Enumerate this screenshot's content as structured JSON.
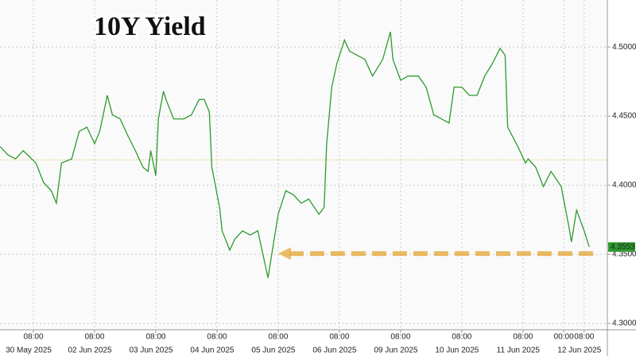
{
  "chart_data": {
    "type": "line",
    "title": "10Y Yield",
    "color": "#2e9a2e",
    "x": [
      -5,
      -2,
      1,
      4,
      9,
      12,
      15,
      17,
      19,
      23,
      26,
      29,
      32,
      34,
      37,
      39,
      42,
      45,
      48,
      51,
      53,
      54,
      56,
      57,
      59,
      60,
      63,
      67,
      70,
      73,
      75,
      77,
      78,
      81,
      82,
      85,
      87,
      90,
      93,
      96,
      98,
      100,
      102,
      104,
      107,
      110,
      113,
      116,
      120,
      122,
      123,
      125,
      127,
      130,
      132,
      135,
      138,
      141,
      145,
      148,
      149,
      152,
      155,
      159,
      162,
      165,
      168,
      171,
      173,
      176,
      179,
      182,
      185,
      188,
      191,
      193,
      194,
      198,
      201,
      202,
      205,
      208,
      211,
      215,
      218,
      219,
      221,
      224,
      226
    ],
    "values": [
      4.428,
      4.422,
      4.419,
      4.425,
      4.416,
      4.402,
      4.396,
      4.387,
      4.416,
      4.419,
      4.439,
      4.442,
      4.43,
      4.439,
      4.465,
      4.451,
      4.448,
      4.436,
      4.425,
      4.413,
      4.41,
      4.425,
      4.407,
      4.448,
      4.468,
      4.462,
      4.448,
      4.448,
      4.451,
      4.462,
      4.462,
      4.453,
      4.413,
      4.384,
      4.367,
      4.353,
      4.361,
      4.367,
      4.364,
      4.367,
      4.35,
      4.333,
      4.356,
      4.379,
      4.396,
      4.393,
      4.387,
      4.39,
      4.379,
      4.384,
      4.43,
      4.471,
      4.488,
      4.505,
      4.497,
      4.494,
      4.491,
      4.479,
      4.491,
      4.511,
      4.491,
      4.476,
      4.479,
      4.479,
      4.471,
      4.451,
      4.448,
      4.445,
      4.471,
      4.471,
      4.465,
      4.465,
      4.479,
      4.488,
      4.499,
      4.494,
      4.442,
      4.428,
      4.416,
      4.419,
      4.413,
      4.399,
      4.41,
      4.399,
      4.37,
      4.359,
      4.382,
      4.367,
      4.3553
    ],
    "xlim": [
      -5.1,
      233.1
    ],
    "ylim": [
      4.2954,
      4.534
    ],
    "yticks": [
      {
        "value": 4.3,
        "label": "4.3000"
      },
      {
        "value": 4.35,
        "label": "4.3500"
      },
      {
        "value": 4.4,
        "label": "4.4000"
      },
      {
        "value": 4.45,
        "label": "4.4500"
      },
      {
        "value": 4.5,
        "label": "4.5000"
      }
    ],
    "xticks": [
      {
        "value": 8,
        "label": "08:00"
      },
      {
        "value": 32,
        "label": "08:00"
      },
      {
        "value": 56,
        "label": "08:00"
      },
      {
        "value": 80,
        "label": "08:00"
      },
      {
        "value": 104,
        "label": "08:00"
      },
      {
        "value": 128,
        "label": "08:00"
      },
      {
        "value": 152,
        "label": "08:00"
      },
      {
        "value": 176,
        "label": "08:00"
      },
      {
        "value": 200,
        "label": "08:00"
      },
      {
        "value": 216,
        "label": "00:00"
      },
      {
        "value": 224,
        "label": "08:00"
      }
    ],
    "x_dates": [
      "30 May 2025",
      "02 Jun 2025",
      "03 Jun 2025",
      "04 Jun 2025",
      "05 Jun 2025",
      "06 Jun 2025",
      "09 Jun 2025",
      "10 Jun 2025",
      "11 Jun 2025",
      "12 Jun 2025"
    ],
    "reference_line": {
      "value": 4.4184,
      "color": "#d8b24a"
    },
    "arrow": {
      "value": 4.3505,
      "x": [
        104,
        229
      ],
      "color": "#e6b04a"
    },
    "last_value": {
      "value": 4.3553,
      "label": "4.3553",
      "color": "#2e9a2e"
    },
    "grid": true
  }
}
